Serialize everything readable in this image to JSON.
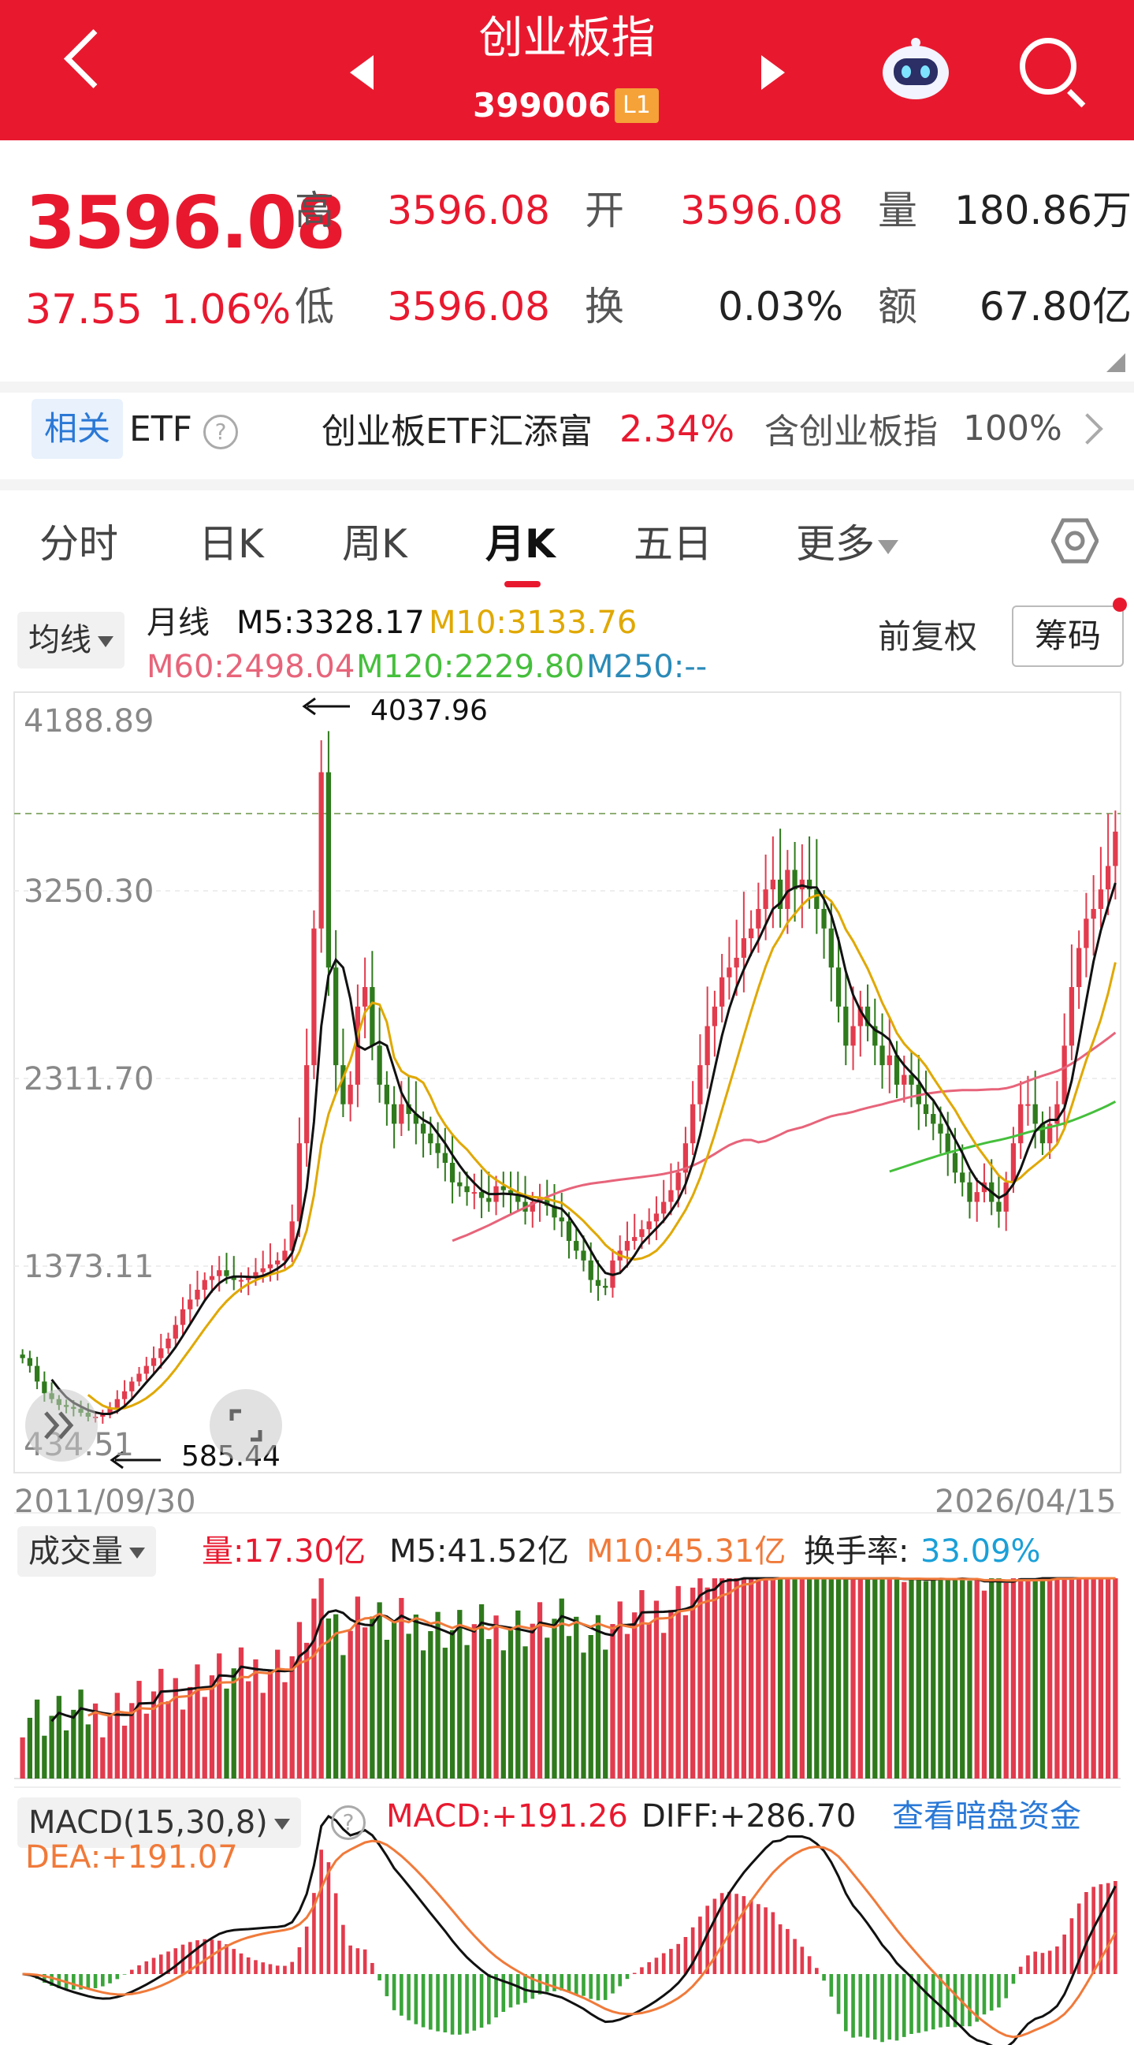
{
  "header": {
    "title": "创业板指",
    "code": "399006",
    "level": "L1"
  },
  "quote": {
    "price": "3596.08",
    "change": "37.55",
    "change_pct": "1.06%",
    "high_label": "高",
    "high": "3596.08",
    "open_label": "开",
    "open": "3596.08",
    "volume_label": "量",
    "volume": "180.86万",
    "low_label": "低",
    "low": "3596.08",
    "turnover_label": "换",
    "turnover": "0.03%",
    "amount_label": "额",
    "amount": "67.80亿"
  },
  "etf": {
    "related": "相关",
    "etf": "ETF",
    "help": "?",
    "name": "创业板ETF汇添富",
    "pct": "2.34%",
    "contains": "含创业板指",
    "contains_pct": "100%"
  },
  "tabs": [
    "分时",
    "日K",
    "周K",
    "月K",
    "五日",
    "更多"
  ],
  "active_tab": "月K",
  "ma": {
    "selector": "均线",
    "period": "月线",
    "m5": "M5:3328.17",
    "m10": "M10:3133.76",
    "m60": "M60:2498.04",
    "m120": "M120:2229.80",
    "m250": "M250:--",
    "adjust": "前复权",
    "chips": "筹码"
  },
  "colors": {
    "accent": "#e8192f",
    "up": "#e23b4d",
    "down": "#2f7a1c",
    "m5": "#111111",
    "m10": "#e0a800",
    "m60": "#e7647a",
    "m120": "#45bf3c",
    "m250": "#2a8ab8",
    "turnover": "#1aa0d8",
    "dea": "#f07a3a"
  },
  "chart_data": {
    "type": "candlestick",
    "period": "monthly",
    "y_axis_labels": [
      "4188.89",
      "3250.30",
      "2311.70",
      "1373.11",
      "434.51"
    ],
    "ylim": [
      434.51,
      4188.89
    ],
    "x_start": "2011/09/30",
    "x_end": "2026/04/15",
    "max_annotation": "4037.96",
    "min_annotation": "585.44",
    "last_close": 3596.08,
    "close_series_approx": [
      900,
      860,
      780,
      720,
      690,
      660,
      650,
      640,
      620,
      600,
      600,
      610,
      640,
      690,
      730,
      780,
      820,
      860,
      900,
      950,
      1000,
      1070,
      1150,
      1200,
      1250,
      1300,
      1320,
      1350,
      1320,
      1300,
      1300,
      1310,
      1340,
      1360,
      1380,
      1400,
      1450,
      1600,
      2000,
      2400,
      3100,
      3900,
      2900,
      2400,
      2200,
      2300,
      2700,
      2800,
      2500,
      2300,
      2200,
      2100,
      2200,
      2150,
      2100,
      2050,
      2000,
      1950,
      1900,
      1800,
      1780,
      1750,
      1750,
      1720,
      1700,
      1780,
      1760,
      1740,
      1700,
      1650,
      1700,
      1720,
      1680,
      1620,
      1600,
      1500,
      1450,
      1400,
      1300,
      1270,
      1260,
      1400,
      1450,
      1500,
      1520,
      1560,
      1600,
      1640,
      1700,
      1760,
      1850,
      2000,
      2200,
      2400,
      2600,
      2700,
      2850,
      2900,
      2950,
      3050,
      3100,
      3200,
      3300,
      3350,
      3200,
      3400,
      3300,
      3350,
      3300,
      3200,
      3100,
      2900,
      2700,
      2500,
      2600,
      2700,
      2600,
      2500,
      2400,
      2450,
      2300,
      2350,
      2300,
      2200,
      2150,
      2100,
      2050,
      1950,
      1850,
      1800,
      1700,
      1750,
      1800,
      1700,
      1650,
      1800,
      2000,
      2200,
      2200,
      2100,
      2000,
      2100,
      2200,
      2500,
      2800,
      3000,
      3150,
      3200,
      3300,
      3420,
      3596
    ]
  },
  "volume": {
    "selector": "成交量",
    "vol": "量:17.30亿",
    "m5": "M5:41.52亿",
    "m10": "M10:45.31亿",
    "turnover_label": "换手率:",
    "turnover": "33.09%"
  },
  "macd": {
    "selector": "MACD(15,30,8)",
    "help": "?",
    "macd": "MACD:+191.26",
    "diff": "DIFF:+286.70",
    "dea": "DEA:+191.07",
    "link": "查看暗盘资金"
  }
}
